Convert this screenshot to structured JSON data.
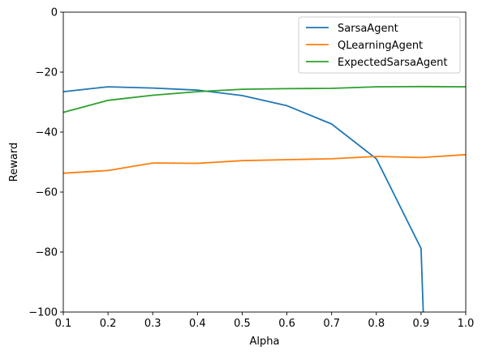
{
  "chart_data": {
    "type": "line",
    "xlabel": "Alpha",
    "ylabel": "Reward",
    "xlim": [
      0.1,
      1.0
    ],
    "ylim": [
      -100,
      0
    ],
    "x_ticks": [
      "0.1",
      "0.2",
      "0.3",
      "0.4",
      "0.5",
      "0.6",
      "0.7",
      "0.8",
      "0.9",
      "1.0"
    ],
    "y_ticks": [
      "−100",
      "−80",
      "−60",
      "−40",
      "−20",
      "0"
    ],
    "legend_position": "top-right",
    "grid": false,
    "series": [
      {
        "name": "SarsaAgent",
        "color": "#1f77b4",
        "x": [
          0.1,
          0.2,
          0.3,
          0.4,
          0.5,
          0.6,
          0.7,
          0.8,
          0.9,
          0.905
        ],
        "y": [
          -26.5,
          -24.9,
          -25.3,
          -26.0,
          -27.8,
          -31.2,
          -37.3,
          -48.9,
          -78.8,
          -100
        ]
      },
      {
        "name": "QLearningAgent",
        "color": "#ff7f0e",
        "x": [
          0.1,
          0.2,
          0.3,
          0.4,
          0.5,
          0.6,
          0.7,
          0.8,
          0.9,
          1.0
        ],
        "y": [
          -53.7,
          -52.8,
          -50.3,
          -50.4,
          -49.5,
          -49.2,
          -48.9,
          -48.1,
          -48.5,
          -47.5
        ]
      },
      {
        "name": "ExpectedSarsaAgent",
        "color": "#2ca02c",
        "x": [
          0.1,
          0.2,
          0.3,
          0.4,
          0.5,
          0.6,
          0.7,
          0.8,
          0.9,
          1.0
        ],
        "y": [
          -33.4,
          -29.4,
          -27.7,
          -26.5,
          -25.7,
          -25.5,
          -25.4,
          -24.9,
          -24.8,
          -24.9
        ]
      }
    ]
  }
}
